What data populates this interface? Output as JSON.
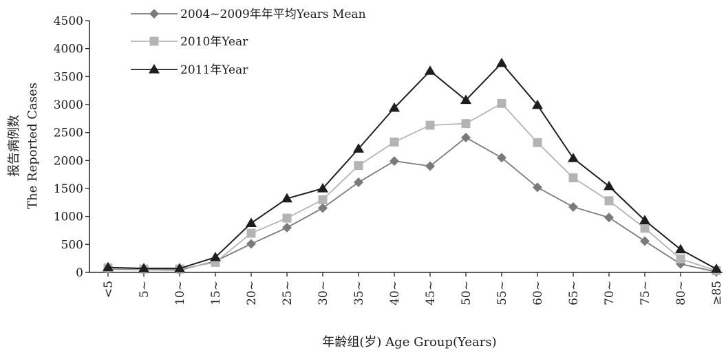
{
  "chart_data": {
    "type": "line",
    "title": "",
    "ylabel_cn": "报告病例数",
    "ylabel_en": "The Reported Cases",
    "xlabel": "年龄组(岁)  Age Group(Years)",
    "categories": [
      "<5",
      "5~",
      "10~",
      "15~",
      "20~",
      "25~",
      "30~",
      "35~",
      "40~",
      "45~",
      "50~",
      "55~",
      "60~",
      "65~",
      "70~",
      "75~",
      "80~",
      "≥85"
    ],
    "yticks": [
      "0",
      "500",
      "1000",
      "1500",
      "2000",
      "2500",
      "3000",
      "3500",
      "4000",
      "4500"
    ],
    "ylim": [
      0,
      4500
    ],
    "grid": false,
    "legend_position": "top-left",
    "series": [
      {
        "name": "2004~2009年年平均Years Mean",
        "marker": "diamond",
        "color": "#7a7a7a",
        "values": [
          60,
          50,
          40,
          200,
          510,
          800,
          1150,
          1610,
          1990,
          1900,
          2410,
          2050,
          1520,
          1170,
          980,
          560,
          150,
          10
        ]
      },
      {
        "name": "2010年Year",
        "marker": "square",
        "color": "#b4b4b4",
        "values": [
          80,
          60,
          60,
          180,
          700,
          970,
          1300,
          1910,
          2330,
          2630,
          2660,
          3020,
          2320,
          1690,
          1280,
          790,
          240,
          30
        ]
      },
      {
        "name": "2011年Year",
        "marker": "triangle",
        "color": "#1e1e1e",
        "values": [
          90,
          70,
          70,
          270,
          880,
          1320,
          1500,
          2210,
          2940,
          3600,
          3080,
          3740,
          2990,
          2040,
          1540,
          930,
          410,
          60
        ]
      }
    ]
  }
}
